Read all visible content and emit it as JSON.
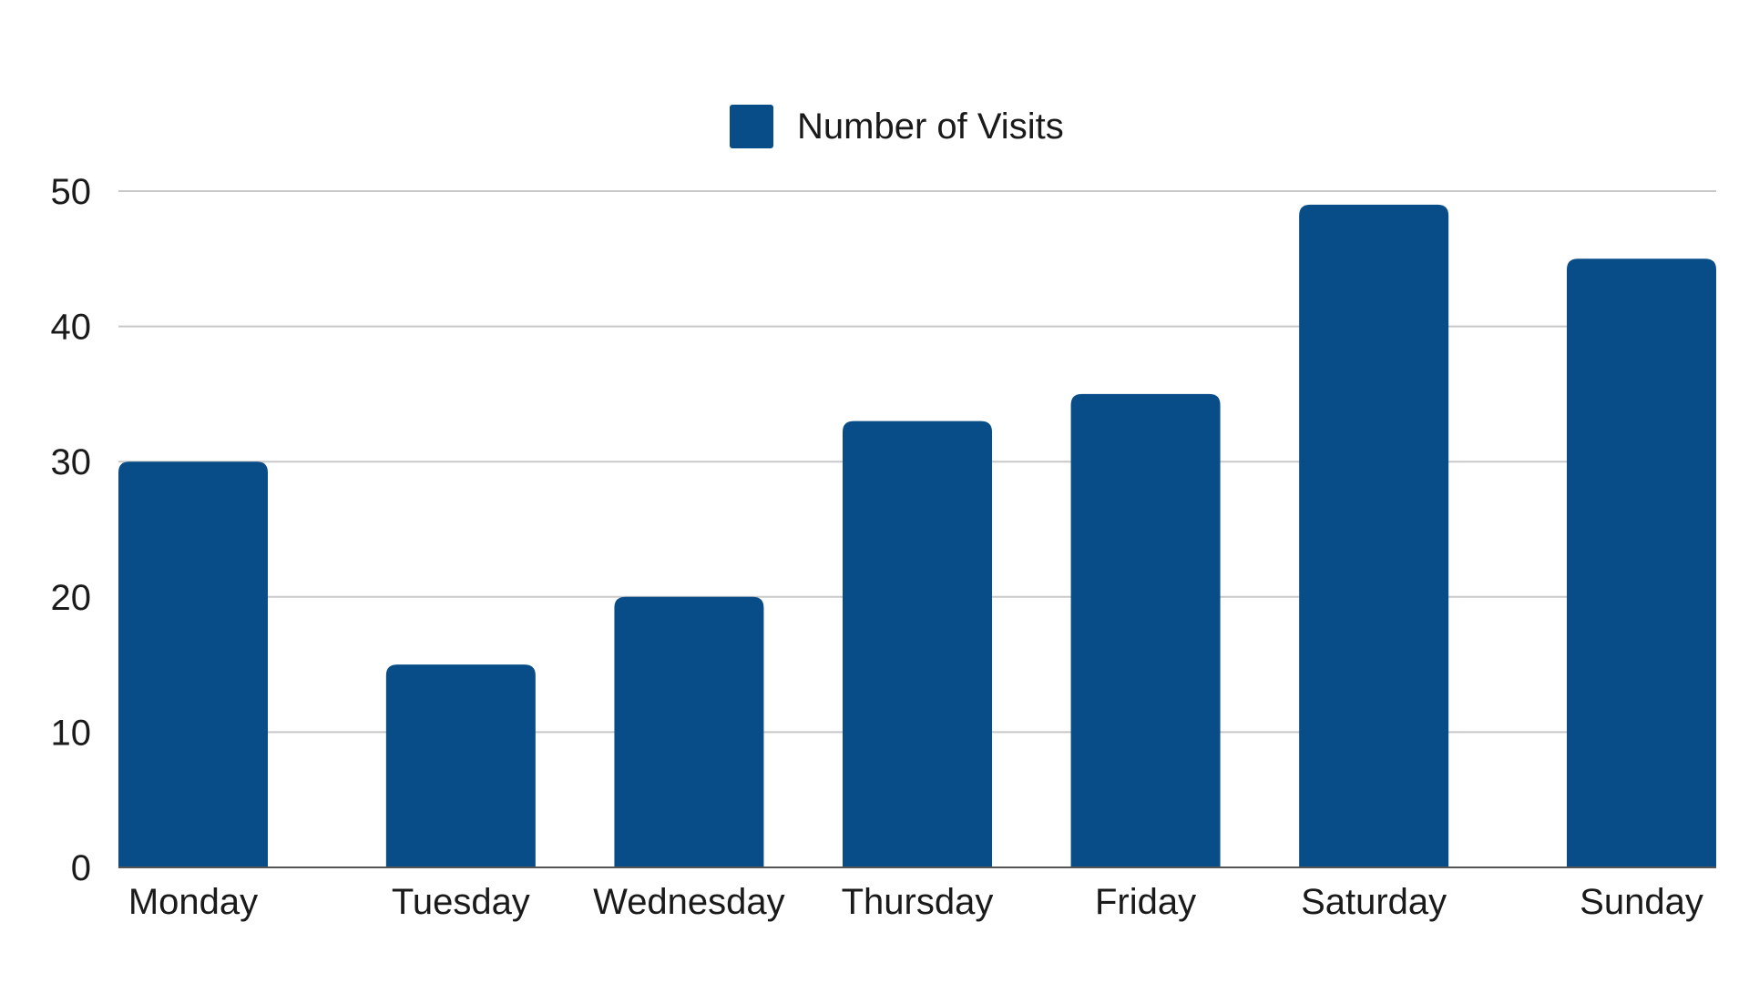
{
  "chart_data": {
    "type": "bar",
    "categories": [
      "Monday",
      "Tuesday",
      "Wednesday",
      "Thursday",
      "Friday",
      "Saturday",
      "Sunday"
    ],
    "series": [
      {
        "name": "Number of Visits",
        "values": [
          30,
          15,
          20,
          33,
          35,
          49,
          45
        ],
        "color": "#084d87"
      }
    ],
    "title": "",
    "xlabel": "",
    "ylabel": "",
    "ylim": [
      0,
      50
    ],
    "yticks": [
      "0",
      "10",
      "20",
      "30",
      "40",
      "50"
    ],
    "grid": true,
    "legend_position": "top-center",
    "colors": {
      "grid": "#c8c8c8",
      "axis": "#555555",
      "text": "#1a1a1a"
    }
  }
}
